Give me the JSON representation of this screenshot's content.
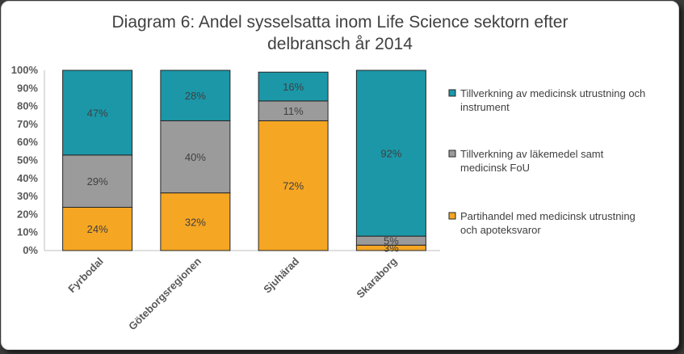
{
  "chart_data": {
    "type": "bar",
    "stacked": true,
    "title_line1": "Diagram 6: Andel sysselsatta inom Life Science sektorn efter",
    "title_line2": "delbransch år 2014",
    "categories": [
      "Fyrbodal",
      "Göteborgsregionen",
      "Sjuhärad",
      "Skaraborg"
    ],
    "ylim": [
      0,
      100
    ],
    "yticks": [
      "0%",
      "10%",
      "20%",
      "30%",
      "40%",
      "50%",
      "60%",
      "70%",
      "80%",
      "90%",
      "100%"
    ],
    "series": [
      {
        "name": "Partihandel med medicinsk utrustning och apoteksvaror",
        "legend_lines": [
          "Partihandel med medicinsk utrustning",
          "och apoteksvaror"
        ],
        "color": "#f5a623",
        "values": [
          24,
          32,
          72,
          3
        ],
        "labels": [
          "24%",
          "32%",
          "72%",
          "3%"
        ]
      },
      {
        "name": "Tillverkning av läkemedel samt medicinsk FoU",
        "legend_lines": [
          "Tillverkning av läkemedel samt",
          "medicinsk FoU"
        ],
        "color": "#9b9b9b",
        "values": [
          29,
          40,
          11,
          5
        ],
        "labels": [
          "29%",
          "40%",
          "11%",
          "5%"
        ]
      },
      {
        "name": "Tillverkning av medicinsk utrustning och instrument",
        "legend_lines": [
          "Tillverkning av medicinsk utrustning och",
          "instrument"
        ],
        "color": "#1b97a8",
        "values": [
          47,
          28,
          16,
          92
        ],
        "labels": [
          "47%",
          "28%",
          "16%",
          "92%"
        ]
      }
    ],
    "legend": "right"
  }
}
